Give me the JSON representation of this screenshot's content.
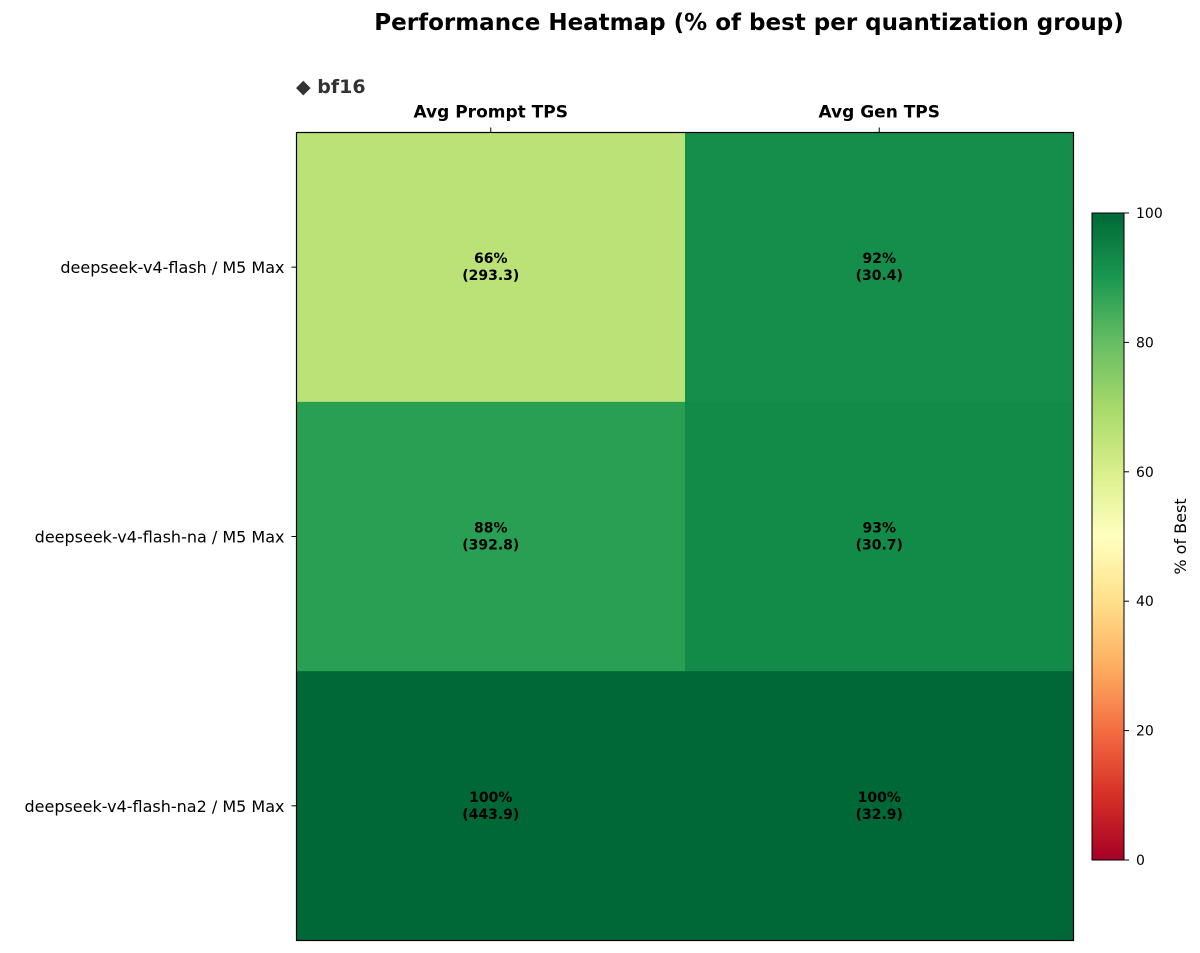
{
  "chart_data": {
    "type": "heatmap",
    "title": "Performance Heatmap (% of best per quantization group)",
    "group_label": "◆ bf16",
    "columns": [
      "Avg Prompt TPS",
      "Avg Gen TPS"
    ],
    "rows": [
      "deepseek-v4-flash / M5 Max",
      "deepseek-v4-flash-na / M5 Max",
      "deepseek-v4-flash-na2 / M5 Max"
    ],
    "percent": [
      [
        66,
        92
      ],
      [
        88,
        93
      ],
      [
        100,
        100
      ]
    ],
    "raw_values": [
      [
        293.3,
        30.4
      ],
      [
        392.8,
        30.7
      ],
      [
        443.9,
        32.9
      ]
    ],
    "cell_labels": [
      [
        [
          "66%",
          "(293.3)"
        ],
        [
          "92%",
          "(30.4)"
        ]
      ],
      [
        [
          "88%",
          "(392.8)"
        ],
        [
          "93%",
          "(30.7)"
        ]
      ],
      [
        [
          "100%",
          "(443.9)"
        ],
        [
          "100%",
          "(32.9)"
        ]
      ]
    ],
    "colorbar": {
      "label": "% of Best",
      "ticks": [
        "0",
        "20",
        "40",
        "60",
        "80",
        "100"
      ],
      "range": [
        0,
        100
      ],
      "colormap": "RdYlGn"
    }
  }
}
